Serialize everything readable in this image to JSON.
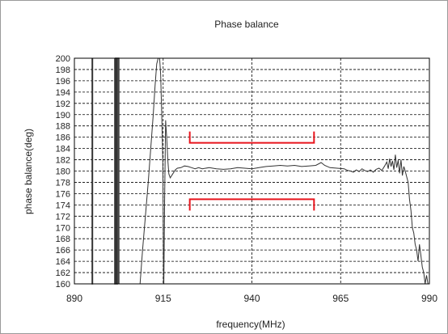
{
  "chart_data": {
    "type": "line",
    "title": "Phase balance",
    "xlabel": "frequency(MHz)",
    "ylabel": "phase balance(deg)",
    "xlim": [
      890,
      990
    ],
    "ylim": [
      160,
      200
    ],
    "xticks": [
      890,
      915,
      940,
      965,
      990
    ],
    "yticks": [
      160,
      162,
      164,
      166,
      168,
      170,
      172,
      174,
      176,
      178,
      180,
      182,
      184,
      186,
      188,
      190,
      192,
      194,
      196,
      198,
      200
    ],
    "grid": true,
    "colors": {
      "series": "#333333",
      "spec": "#e8141c"
    },
    "series": [
      {
        "x": [
          895,
          895,
          895.1,
          895.1
        ],
        "y": [
          200,
          160,
          160,
          200
        ]
      },
      {
        "x": [
          901.4,
          901.4,
          901.6,
          901.6,
          901.9,
          901.9,
          902.1,
          902.1,
          902.5,
          902.5
        ],
        "y": [
          200,
          160,
          160,
          200,
          200,
          160,
          160,
          200,
          200,
          160
        ]
      },
      {
        "x": [
          908.5,
          909.2,
          910,
          910.8,
          911.5,
          912.2,
          912.7,
          913.2,
          913.6,
          914,
          914.3,
          914.6,
          914.9,
          915.0,
          915.05,
          915.1,
          915.2,
          915.4,
          915.7,
          916.0,
          916.3,
          916.6,
          917.0,
          917.6,
          918.4,
          919,
          920,
          921,
          922,
          923,
          924,
          925,
          926,
          928,
          930,
          932,
          934,
          936,
          938,
          940,
          942,
          944,
          946,
          948,
          950,
          952,
          954,
          956,
          958,
          959.5,
          960.5,
          962,
          964,
          966,
          967,
          967.8,
          968.6,
          969.4,
          970.2,
          971,
          971.8,
          972.6,
          973.4,
          974.2,
          975,
          975.8,
          976.6,
          977.4,
          978,
          978.4,
          978.8,
          979.2,
          979.6,
          980,
          980.4,
          980.8,
          981.2,
          981.6,
          982,
          982.4,
          982.8,
          983.2,
          983.6,
          984,
          984.4,
          984.8,
          985.2,
          985.6,
          986,
          986.4,
          986.8,
          987.2,
          987.6,
          988,
          988.4,
          988.8,
          989.2,
          989.6,
          990
        ],
        "y": [
          160,
          166,
          172,
          178,
          184,
          190,
          195,
          199,
          200,
          200,
          197,
          190,
          182,
          172,
          165,
          160,
          160,
          174,
          189,
          186,
          182,
          179.5,
          178.8,
          179.4,
          180.2,
          180.5,
          180.6,
          180.9,
          180.8,
          180.6,
          180.4,
          180.6,
          180.4,
          180.6,
          180.4,
          180.3,
          180.4,
          180.6,
          180.5,
          180.4,
          180.6,
          180.8,
          180.9,
          181.0,
          180.9,
          181.0,
          180.8,
          180.9,
          181.0,
          181.5,
          181.0,
          180.6,
          180.5,
          180.4,
          180.1,
          180.0,
          179.8,
          180.2,
          179.9,
          180.4,
          180.1,
          179.9,
          180.2,
          179.8,
          180.3,
          180.5,
          180.1,
          180.9,
          181.6,
          180.4,
          182.2,
          180.8,
          181.8,
          180.2,
          182.9,
          180.6,
          181.9,
          179.6,
          182.0,
          179.2,
          180.8,
          180.0,
          179.0,
          178.0,
          175.0,
          173.0,
          170.0,
          169.0,
          167.0,
          166.0,
          164.0,
          167.0,
          165.0,
          163.0,
          162.0,
          160.0,
          161.5,
          160.0,
          160.0
        ]
      }
    ],
    "spec_marks": [
      {
        "x": [
          922.5,
          957.5
        ],
        "y": 185,
        "tick_to": 187
      },
      {
        "x": [
          922.5,
          957.5
        ],
        "y": 175,
        "tick_to": 173
      }
    ]
  }
}
